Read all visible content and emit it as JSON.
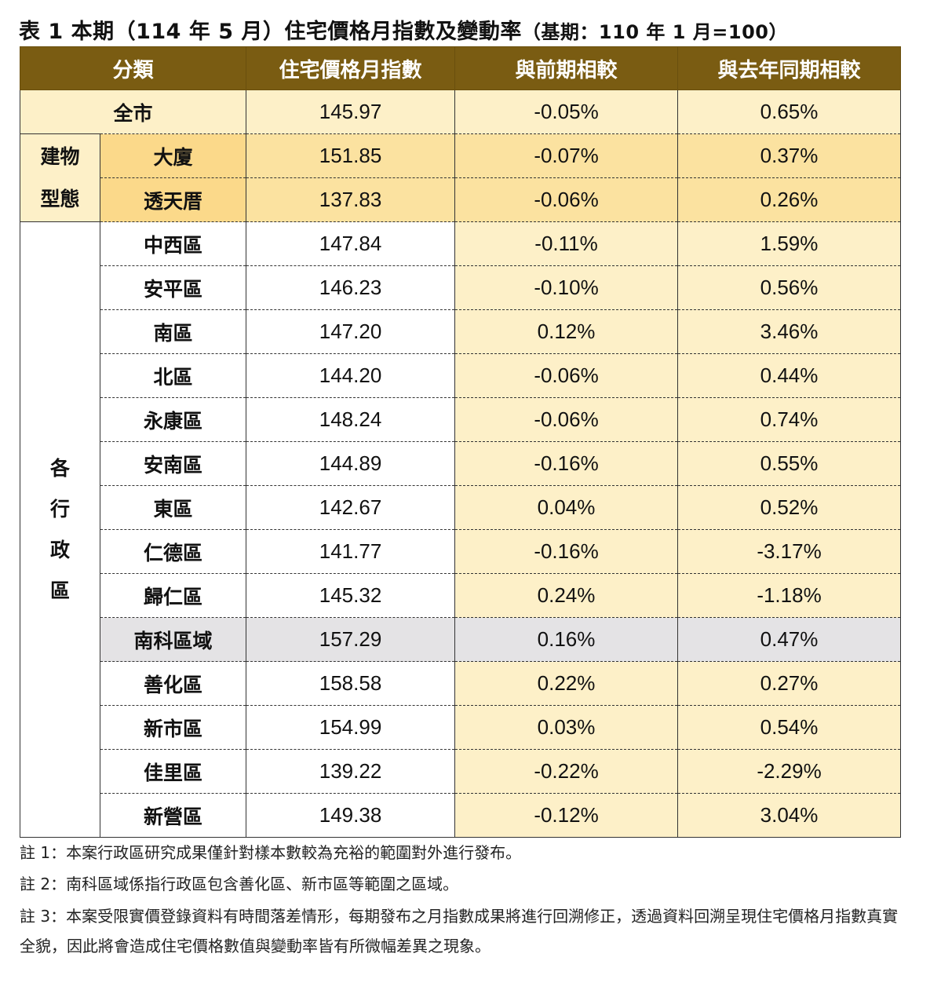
{
  "title": {
    "main": "表 1 本期（114 年 5 月）住宅價格月指數及變動率",
    "base": "（基期：110 年 1 月=100）"
  },
  "table": {
    "headers": [
      "分類",
      "住宅價格月指數",
      "與前期相較",
      "與去年同期相較"
    ],
    "all_city": {
      "label": "全市",
      "index": "145.97",
      "mom": "-0.05%",
      "yoy": "0.65%"
    },
    "building_group_label": "建物\n型態",
    "building_types": [
      {
        "label": "大廈",
        "index": "151.85",
        "mom": "-0.07%",
        "yoy": "0.37%"
      },
      {
        "label": "透天厝",
        "index": "137.83",
        "mom": "-0.06%",
        "yoy": "0.26%"
      }
    ],
    "district_group_label": "各\n行\n政\n區",
    "districts": [
      {
        "label": "中西區",
        "index": "147.84",
        "mom": "-0.11%",
        "yoy": "1.59%"
      },
      {
        "label": "安平區",
        "index": "146.23",
        "mom": "-0.10%",
        "yoy": "0.56%"
      },
      {
        "label": "南區",
        "index": "147.20",
        "mom": "0.12%",
        "yoy": "3.46%"
      },
      {
        "label": "北區",
        "index": "144.20",
        "mom": "-0.06%",
        "yoy": "0.44%"
      },
      {
        "label": "永康區",
        "index": "148.24",
        "mom": "-0.06%",
        "yoy": "0.74%"
      },
      {
        "label": "安南區",
        "index": "144.89",
        "mom": "-0.16%",
        "yoy": "0.55%"
      },
      {
        "label": "東區",
        "index": "142.67",
        "mom": "0.04%",
        "yoy": "0.52%"
      },
      {
        "label": "仁德區",
        "index": "141.77",
        "mom": "-0.16%",
        "yoy": "-3.17%"
      },
      {
        "label": "歸仁區",
        "index": "145.32",
        "mom": "0.24%",
        "yoy": "-1.18%"
      },
      {
        "label": "南科區域",
        "index": "157.29",
        "mom": "0.16%",
        "yoy": "0.47%"
      },
      {
        "label": "善化區",
        "index": "158.58",
        "mom": "0.22%",
        "yoy": "0.27%"
      },
      {
        "label": "新市區",
        "index": "154.99",
        "mom": "0.03%",
        "yoy": "0.54%"
      },
      {
        "label": "佳里區",
        "index": "139.22",
        "mom": "-0.22%",
        "yoy": "-2.29%"
      },
      {
        "label": "新營區",
        "index": "149.38",
        "mom": "-0.12%",
        "yoy": "3.04%"
      }
    ]
  },
  "notes": [
    "註 1：本案行政區研究成果僅針對樣本數較為充裕的範圍對外進行發布。",
    "註 2：南科區域係指行政區包含善化區、新市區等範圍之區域。",
    "註 3：本案受限實價登錄資料有時間落差情形，每期發布之月指數成果將進行回溯修正，透過資料回溯呈現住宅價格月指數真實全貌，因此將會造成住宅價格數值與變動率皆有所微幅差異之現象。"
  ]
}
